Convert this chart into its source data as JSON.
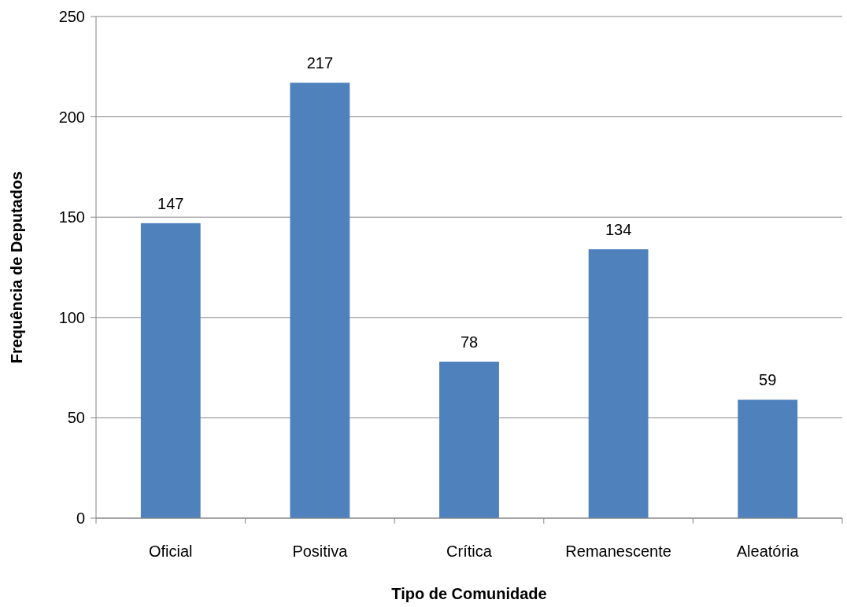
{
  "chart_data": {
    "type": "bar",
    "xlabel": "Tipo de Comunidade",
    "ylabel": "Frequência de Deputados",
    "categories": [
      "Oficial",
      "Positiva",
      "Crítica",
      "Remanescente",
      "Aleatória"
    ],
    "values": [
      147,
      217,
      78,
      134,
      59
    ],
    "color": "#4f81bd",
    "ylim": [
      0,
      250
    ],
    "yticks": [
      0,
      50,
      100,
      150,
      200,
      250
    ],
    "grid": "y",
    "data_labels": true
  }
}
